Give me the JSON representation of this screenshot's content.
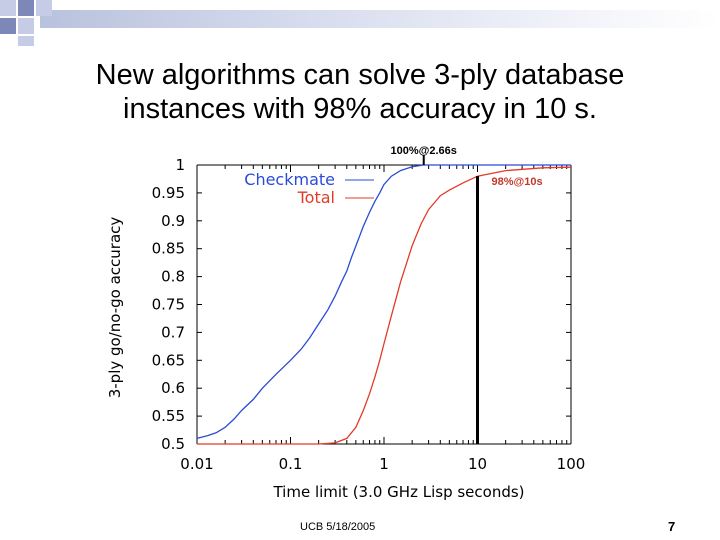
{
  "slide": {
    "title_line1": "New algorithms can solve 3-ply database",
    "title_line2": "instances with 98% accuracy in 10 s.",
    "footer": "UCB 5/18/2005",
    "page_number": "7",
    "colors": {
      "deco_dark": "#7d88b8",
      "deco_light": "#c6cce6",
      "deco_bar": "#c9cfe6"
    }
  },
  "chart_data": {
    "type": "line",
    "xscale": "log",
    "xlabel": "Time limit (3.0 GHz Lisp seconds)",
    "ylabel": "3-ply go/no-go accuracy",
    "xlim": [
      0.01,
      100
    ],
    "ylim": [
      0.5,
      1.0
    ],
    "x_ticks": [
      0.01,
      0.1,
      1,
      10,
      100
    ],
    "x_tick_labels": [
      "0.01",
      "0.1",
      "1",
      "10",
      "100"
    ],
    "y_ticks": [
      0.5,
      0.55,
      0.6,
      0.65,
      0.7,
      0.75,
      0.8,
      0.85,
      0.9,
      0.95,
      1
    ],
    "y_tick_labels": [
      "0.5",
      "0.55",
      "0.6",
      "0.65",
      "0.7",
      "0.75",
      "0.8",
      "0.85",
      "0.9",
      "0.95",
      "1"
    ],
    "grid": false,
    "legend_position": "top-left",
    "series": [
      {
        "name": "Checkmate",
        "color": "#2a4bd7",
        "x": [
          0.01,
          0.013,
          0.016,
          0.02,
          0.025,
          0.03,
          0.04,
          0.05,
          0.07,
          0.1,
          0.13,
          0.16,
          0.2,
          0.25,
          0.3,
          0.35,
          0.4,
          0.45,
          0.5,
          0.6,
          0.7,
          0.8,
          0.9,
          1.0,
          1.2,
          1.5,
          2.0,
          2.66,
          5,
          10,
          20,
          50,
          100
        ],
        "y": [
          0.51,
          0.515,
          0.52,
          0.53,
          0.545,
          0.56,
          0.58,
          0.6,
          0.625,
          0.65,
          0.67,
          0.69,
          0.715,
          0.74,
          0.765,
          0.79,
          0.81,
          0.835,
          0.855,
          0.89,
          0.915,
          0.935,
          0.95,
          0.965,
          0.98,
          0.99,
          0.997,
          1.0,
          1.0,
          1.0,
          1.0,
          1.0,
          1.0
        ]
      },
      {
        "name": "Total",
        "color": "#e23b28",
        "x": [
          0.01,
          0.05,
          0.1,
          0.2,
          0.3,
          0.4,
          0.5,
          0.6,
          0.7,
          0.8,
          0.9,
          1.0,
          1.2,
          1.5,
          2.0,
          2.5,
          3.0,
          4.0,
          5.0,
          7.0,
          10,
          20,
          50,
          100
        ],
        "y": [
          0.5,
          0.5,
          0.5,
          0.5,
          0.502,
          0.51,
          0.53,
          0.56,
          0.59,
          0.62,
          0.65,
          0.68,
          0.73,
          0.79,
          0.855,
          0.895,
          0.92,
          0.945,
          0.955,
          0.968,
          0.98,
          0.99,
          0.995,
          0.996
        ]
      }
    ],
    "annotations": [
      {
        "text": "100%@2.66s",
        "x": 2.66,
        "y": 1.0,
        "color": "#000000"
      },
      {
        "text": "98%@10s",
        "x": 10,
        "y": 0.98,
        "color": "#c0392b"
      }
    ]
  }
}
